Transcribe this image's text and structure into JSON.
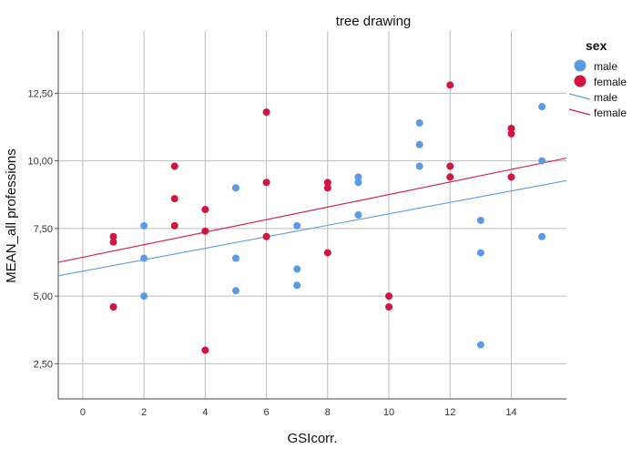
{
  "chart_data": {
    "type": "scatter",
    "title": "tree drawing",
    "xlabel": "GSIcorr.",
    "ylabel": "MEAN_all professions",
    "xlim": [
      -0.8,
      15.8
    ],
    "ylim": [
      1.2,
      14.8
    ],
    "x_ticks": [
      0,
      2,
      4,
      6,
      8,
      10,
      12,
      14
    ],
    "x_tick_labels": [
      "0",
      "2",
      "4",
      "6",
      "8",
      "10",
      "12",
      "14"
    ],
    "y_ticks": [
      2.5,
      5.0,
      7.5,
      10.0,
      12.5
    ],
    "y_tick_labels": [
      "2,50",
      "5,00",
      "7,50",
      "10,00",
      "12,50"
    ],
    "grid": true,
    "legend_title": "sex",
    "legend_position": "right",
    "series": [
      {
        "name": "male",
        "color": "#5A9BE3",
        "points": [
          [
            2,
            7.6
          ],
          [
            2,
            6.4
          ],
          [
            2,
            5.0
          ],
          [
            5,
            9.0
          ],
          [
            5,
            6.4
          ],
          [
            5,
            5.2
          ],
          [
            7,
            7.6
          ],
          [
            7,
            6.0
          ],
          [
            7,
            5.4
          ],
          [
            9,
            9.4
          ],
          [
            9,
            9.2
          ],
          [
            9,
            8.0
          ],
          [
            11,
            11.4
          ],
          [
            11,
            10.6
          ],
          [
            11,
            9.8
          ],
          [
            13,
            7.8
          ],
          [
            13,
            6.6
          ],
          [
            13,
            3.2
          ],
          [
            15,
            12.0
          ],
          [
            15,
            10.0
          ],
          [
            15,
            7.2
          ]
        ],
        "fit_line": {
          "x": [
            -0.8,
            15.8
          ],
          "y": [
            5.75,
            9.27
          ]
        }
      },
      {
        "name": "female",
        "color": "#D4143E",
        "points": [
          [
            1,
            7.2
          ],
          [
            1,
            7.0
          ],
          [
            1,
            4.6
          ],
          [
            3,
            9.8
          ],
          [
            3,
            8.6
          ],
          [
            3,
            7.6
          ],
          [
            4,
            8.2
          ],
          [
            4,
            7.4
          ],
          [
            4,
            3.0
          ],
          [
            6,
            11.8
          ],
          [
            6,
            9.2
          ],
          [
            6,
            7.2
          ],
          [
            8,
            9.2
          ],
          [
            8,
            9.0
          ],
          [
            8,
            6.6
          ],
          [
            10,
            5.0
          ],
          [
            10,
            4.6
          ],
          [
            12,
            12.8
          ],
          [
            12,
            9.8
          ],
          [
            12,
            9.4
          ],
          [
            14,
            11.2
          ],
          [
            14,
            11.0
          ],
          [
            14,
            9.4
          ]
        ],
        "fit_line": {
          "x": [
            -0.8,
            15.8
          ],
          "y": [
            6.25,
            10.1
          ]
        }
      }
    ],
    "legend": [
      {
        "kind": "marker",
        "label": "male",
        "color": "#5A9BE3"
      },
      {
        "kind": "marker",
        "label": "female",
        "color": "#D4143E"
      },
      {
        "kind": "line",
        "label": "male",
        "color": "#5A9BE3"
      },
      {
        "kind": "line",
        "label": "female",
        "color": "#D4143E"
      }
    ]
  }
}
